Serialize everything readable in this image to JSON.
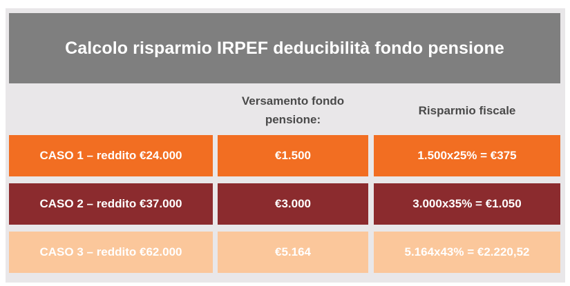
{
  "title": "Calcolo risparmio IRPEF deducibilità fondo pensione",
  "headers": {
    "col1": "",
    "col2": "Versamento fondo pensione:",
    "col3": "Risparmio fiscale"
  },
  "rows": [
    {
      "caso": "CASO 1 – reddito €24.000",
      "versamento": "€1.500",
      "risparmio": "1.500x25% = €375"
    },
    {
      "caso": "CASO 2 – reddito €37.000",
      "versamento": "€3.000",
      "risparmio": "3.000x35% = €1.050"
    },
    {
      "caso": "CASO 3 – reddito €62.000",
      "versamento": "€5.164",
      "risparmio": "5.164x43% = €2.220,52"
    }
  ],
  "colors": {
    "frame": "#e9e7e9",
    "title_bg": "#7f7f7f",
    "header_text": "#4a4a4a",
    "row1_bg": "#f26e22",
    "row2_bg": "#8b2b2e",
    "row3_bg": "#fbc79b"
  }
}
